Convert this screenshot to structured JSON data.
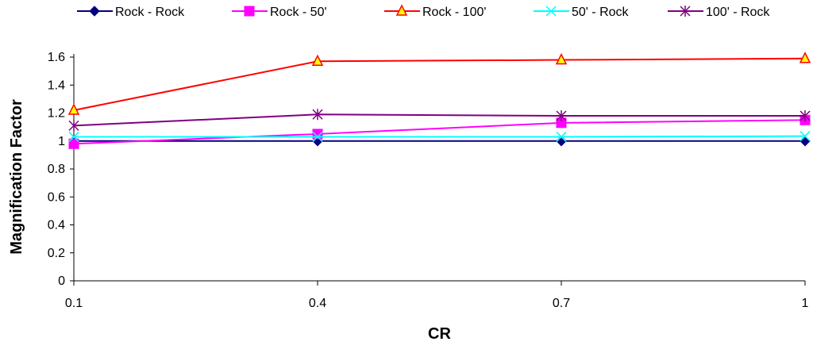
{
  "chart_data": {
    "type": "line",
    "x": [
      "0.1",
      "0.4",
      "0.7",
      "1"
    ],
    "xlabel": "CR",
    "ylabel": "Magnification Factor",
    "ylim": [
      0,
      1.6
    ],
    "yticks": [
      "0",
      "0.2",
      "0.4",
      "0.6",
      "0.8",
      "1",
      "1.2",
      "1.4",
      "1.6"
    ],
    "grid": false,
    "legend_position": "top",
    "series": [
      {
        "name": "Rock - Rock",
        "values": [
          1.0,
          1.0,
          1.0,
          1.0
        ],
        "color": "#000080",
        "marker": "diamond"
      },
      {
        "name": "Rock - 50'",
        "values": [
          0.98,
          1.05,
          1.13,
          1.15
        ],
        "color": "#ff00ff",
        "marker": "square"
      },
      {
        "name": "Rock - 100'",
        "values": [
          1.22,
          1.57,
          1.58,
          1.59
        ],
        "color": "#ff0000",
        "marker": "triangle"
      },
      {
        "name": "50' - Rock",
        "values": [
          1.03,
          1.03,
          1.03,
          1.035
        ],
        "color": "#00ffff",
        "marker": "x"
      },
      {
        "name": "100' - Rock",
        "values": [
          1.11,
          1.19,
          1.18,
          1.18
        ],
        "color": "#800080",
        "marker": "star"
      }
    ]
  }
}
